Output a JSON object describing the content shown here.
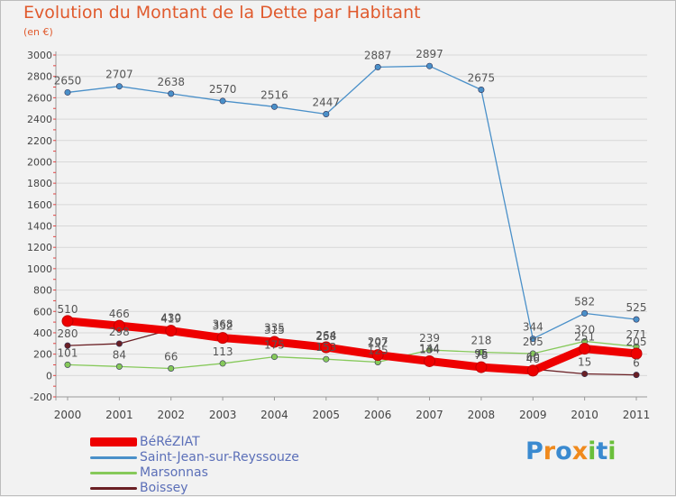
{
  "title": "Evolution du Montant de la Dette par Habitant",
  "subtitle": "(en €)",
  "logo": {
    "text": "Proxiti",
    "letters": [
      {
        "ch": "P",
        "color": "#3a8ad0"
      },
      {
        "ch": "r",
        "color": "#f08a1d"
      },
      {
        "ch": "o",
        "color": "#3a8ad0"
      },
      {
        "ch": "x",
        "color": "#f08a1d"
      },
      {
        "ch": "i",
        "color": "#6abf3b"
      },
      {
        "ch": "t",
        "color": "#3a8ad0"
      },
      {
        "ch": "i",
        "color": "#6abf3b"
      }
    ]
  },
  "chart_data": {
    "type": "line",
    "x": [
      "2000",
      "2001",
      "2002",
      "2003",
      "2004",
      "2005",
      "2006",
      "2007",
      "2008",
      "2009",
      "2010",
      "2011"
    ],
    "ylim": [
      -200,
      3000
    ],
    "yticks": [
      "-200",
      "0",
      "200",
      "400",
      "600",
      "800",
      "1000",
      "1200",
      "1400",
      "1600",
      "1800",
      "2000",
      "2200",
      "2400",
      "2600",
      "2800",
      "3000"
    ],
    "grid": "horizontal",
    "legend_position": "bottom-left",
    "series": [
      {
        "name": "BéRéZIAT",
        "color": "#ee0000",
        "values": [
          510,
          466,
          419,
          352,
          315,
          264,
          192,
          134,
          78,
          46,
          251,
          205
        ],
        "labels": [
          "510",
          "466",
          "419",
          "352",
          "315",
          "264",
          "192",
          "134",
          "78",
          "46",
          "251",
          "205"
        ]
      },
      {
        "name": "Saint-Jean-sur-Reyssouze",
        "color": "#4a90c9",
        "values": [
          2650,
          2707,
          2638,
          2570,
          2516,
          2447,
          2887,
          2897,
          2675,
          344,
          582,
          525
        ],
        "labels": [
          "2650",
          "2707",
          "2638",
          "2570",
          "2516",
          "2447",
          "2887",
          "2897",
          "2675",
          "344",
          "582",
          "525"
        ]
      },
      {
        "name": "Marsonnas",
        "color": "#86c95a",
        "values": [
          101,
          84,
          66,
          113,
          175,
          153,
          125,
          239,
          218,
          205,
          320,
          271
        ],
        "labels": [
          "101",
          "84",
          "66",
          "113",
          "175",
          "153",
          "125",
          "239",
          "218",
          "205",
          "320",
          "271"
        ]
      },
      {
        "name": "Boissey",
        "color": "#6a1f24",
        "values": [
          280,
          298,
          430,
          368,
          335,
          258,
          207,
          144,
          95,
          60,
          15,
          6
        ],
        "labels": [
          "280",
          "298",
          "430",
          "368",
          "335",
          "258",
          "207",
          "144",
          "95",
          "60",
          "15",
          "6"
        ]
      }
    ]
  }
}
